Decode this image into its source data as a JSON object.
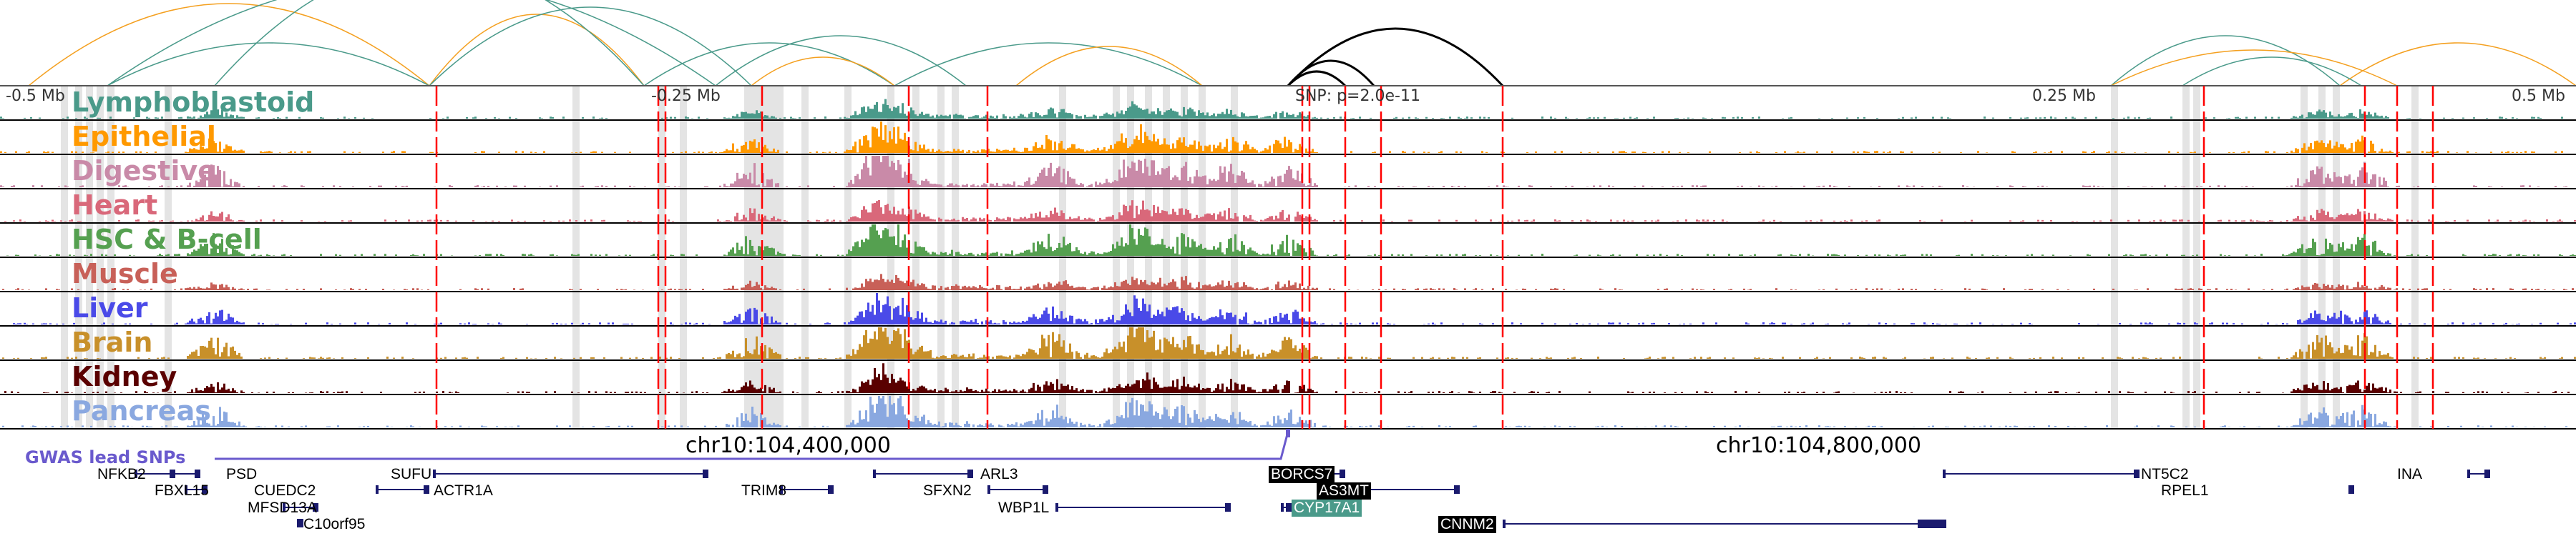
{
  "axis": {
    "ticks": [
      "-0.5 Mb",
      "-0.25 Mb",
      "0.25 Mb",
      "0.5 Mb"
    ],
    "snp_label": "SNP: p=2.0e-11"
  },
  "tracks": [
    {
      "label": "Lymphoblastoid",
      "color": "#4a9a8a"
    },
    {
      "label": "Epithelial",
      "color": "#ff9900"
    },
    {
      "label": "Digestive",
      "color": "#c98aa8"
    },
    {
      "label": "Heart",
      "color": "#d9687a"
    },
    {
      "label": "HSC & B-cell",
      "color": "#55a050"
    },
    {
      "label": "Muscle",
      "color": "#c86058"
    },
    {
      "label": "Liver",
      "color": "#4a4ae8"
    },
    {
      "label": "Brain",
      "color": "#c8902a"
    },
    {
      "label": "Kidney",
      "color": "#5a0000"
    },
    {
      "label": "Pancreas",
      "color": "#8aa8e0"
    }
  ],
  "coords": [
    "chr10:104,400,000",
    "chr10:104,800,000"
  ],
  "gwas_label": "GWAS lead SNPs",
  "genes": [
    "NFKB2",
    "PSD",
    "FBXL15",
    "CUEDC2",
    "MFSD13A",
    "C10orf95",
    "SUFU",
    "ACTR1A",
    "TRIM8",
    "ARL3",
    "SFXN2",
    "WBP1L",
    "BORCS7",
    "AS3MT",
    "CYP17A1",
    "CNNM2",
    "NT5C2",
    "RPEL1",
    "INA"
  ]
}
